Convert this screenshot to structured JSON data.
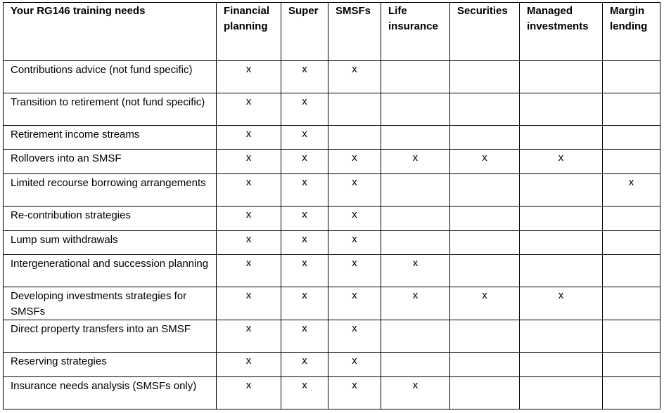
{
  "table": {
    "columns": [
      "Your RG146 training needs",
      "Financial planning",
      "Super",
      "SMSFs",
      "Life insurance",
      "Securities",
      "Managed investments",
      "Margin lending"
    ],
    "rows": [
      [
        "Contributions advice (not fund specific)",
        "x",
        "x",
        "x",
        "",
        "",
        "",
        ""
      ],
      [
        "Transition to retirement (not fund specific)",
        "x",
        "x",
        "",
        "",
        "",
        "",
        ""
      ],
      [
        "Retirement income streams",
        "x",
        "x",
        "",
        "",
        "",
        "",
        ""
      ],
      [
        "Rollovers into an SMSF",
        "x",
        "x",
        "x",
        "x",
        "x",
        "x",
        ""
      ],
      [
        "Limited recourse borrowing arrangements",
        "x",
        "x",
        "x",
        "",
        "",
        "",
        "x"
      ],
      [
        "Re-contribution strategies",
        "x",
        "x",
        "x",
        "",
        "",
        "",
        ""
      ],
      [
        "Lump sum withdrawals",
        "x",
        "x",
        "x",
        "",
        "",
        "",
        ""
      ],
      [
        "Intergenerational and succession planning",
        "x",
        "x",
        "x",
        "x",
        "",
        "",
        ""
      ],
      [
        "Developing investments strategies for SMSFs",
        "x",
        "x",
        "x",
        "x",
        "x",
        "x",
        ""
      ],
      [
        "Direct property transfers into an SMSF",
        "x",
        "x",
        "x",
        "",
        "",
        "",
        ""
      ],
      [
        "Reserving strategies",
        "x",
        "x",
        "x",
        "",
        "",
        "",
        ""
      ],
      [
        "Insurance needs analysis (SMSFs only)",
        "x",
        "x",
        "x",
        "x",
        "",
        "",
        ""
      ]
    ]
  }
}
